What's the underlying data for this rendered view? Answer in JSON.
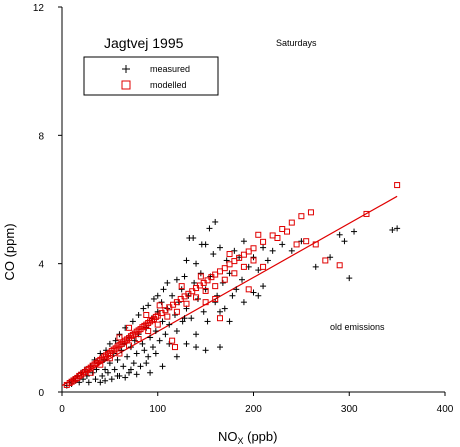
{
  "chart_data": {
    "type": "scatter",
    "title": "Jagtvej 1995",
    "subtitle": "Saturdays",
    "annotation": "old emissions",
    "xlabel": "NO",
    "xlabel_sub": "X",
    "xlabel_unit": " (ppb)",
    "ylabel": "CO (ppm)",
    "xlim": [
      0,
      400
    ],
    "ylim": [
      0,
      12
    ],
    "xticks": [
      0,
      100,
      200,
      300,
      400
    ],
    "yticks": [
      0,
      4,
      8,
      12
    ],
    "legend_placement": "top-left",
    "series": [
      {
        "name": "measured",
        "marker": "plus",
        "color": "#000000",
        "points": [
          [
            5,
            0.2
          ],
          [
            8,
            0.3
          ],
          [
            10,
            0.25
          ],
          [
            12,
            0.4
          ],
          [
            14,
            0.35
          ],
          [
            16,
            0.5
          ],
          [
            18,
            0.3
          ],
          [
            20,
            0.6
          ],
          [
            22,
            0.4
          ],
          [
            24,
            0.7
          ],
          [
            26,
            0.5
          ],
          [
            28,
            0.3
          ],
          [
            30,
            0.8
          ],
          [
            32,
            0.6
          ],
          [
            34,
            1.0
          ],
          [
            35,
            0.4
          ],
          [
            36,
            0.7
          ],
          [
            38,
            0.9
          ],
          [
            40,
            0.3
          ],
          [
            40,
            1.2
          ],
          [
            42,
            0.5
          ],
          [
            44,
            1.0
          ],
          [
            45,
            0.7
          ],
          [
            46,
            1.3
          ],
          [
            48,
            0.6
          ],
          [
            50,
            0.9
          ],
          [
            50,
            1.5
          ],
          [
            52,
            0.4
          ],
          [
            54,
            1.2
          ],
          [
            55,
            0.7
          ],
          [
            56,
            1.6
          ],
          [
            58,
            1.0
          ],
          [
            60,
            0.5
          ],
          [
            60,
            1.8
          ],
          [
            62,
            1.3
          ],
          [
            64,
            0.8
          ],
          [
            65,
            1.5
          ],
          [
            66,
            2.0
          ],
          [
            68,
            1.1
          ],
          [
            70,
            0.6
          ],
          [
            70,
            1.7
          ],
          [
            72,
            1.4
          ],
          [
            74,
            2.2
          ],
          [
            75,
            0.9
          ],
          [
            76,
            1.6
          ],
          [
            78,
            1.2
          ],
          [
            80,
            2.4
          ],
          [
            80,
            1.8
          ],
          [
            82,
            0.8
          ],
          [
            84,
            1.5
          ],
          [
            85,
            2.6
          ],
          [
            86,
            1.3
          ],
          [
            88,
            2.0
          ],
          [
            90,
            1.1
          ],
          [
            90,
            2.7
          ],
          [
            92,
            1.7
          ],
          [
            94,
            2.3
          ],
          [
            95,
            1.4
          ],
          [
            96,
            2.9
          ],
          [
            98,
            1.9
          ],
          [
            100,
            2.5
          ],
          [
            100,
            3.0
          ],
          [
            102,
            1.6
          ],
          [
            104,
            2.8
          ],
          [
            105,
            2.2
          ],
          [
            106,
            3.2
          ],
          [
            108,
            1.8
          ],
          [
            110,
            2.6
          ],
          [
            110,
            3.4
          ],
          [
            112,
            2.1
          ],
          [
            115,
            3.0
          ],
          [
            118,
            2.4
          ],
          [
            120,
            3.5
          ],
          [
            120,
            1.9
          ],
          [
            122,
            2.8
          ],
          [
            125,
            3.2
          ],
          [
            126,
            2.2
          ],
          [
            128,
            3.6
          ],
          [
            130,
            2.6
          ],
          [
            130,
            4.1
          ],
          [
            132,
            3.0
          ],
          [
            135,
            2.3
          ],
          [
            138,
            3.4
          ],
          [
            140,
            4.0
          ],
          [
            140,
            1.8
          ],
          [
            142,
            2.9
          ],
          [
            145,
            3.7
          ],
          [
            148,
            2.5
          ],
          [
            150,
            3.2
          ],
          [
            150,
            4.6
          ],
          [
            152,
            2.2
          ],
          [
            155,
            3.6
          ],
          [
            158,
            4.3
          ],
          [
            160,
            5.3
          ],
          [
            160,
            2.8
          ],
          [
            162,
            3.0
          ],
          [
            165,
            4.5
          ],
          [
            168,
            3.4
          ],
          [
            170,
            2.6
          ],
          [
            172,
            4.1
          ],
          [
            175,
            3.7
          ],
          [
            178,
            3.0
          ],
          [
            180,
            4.4
          ],
          [
            182,
            3.2
          ],
          [
            185,
            4.2
          ],
          [
            188,
            3.5
          ],
          [
            190,
            4.7
          ],
          [
            195,
            3.9
          ],
          [
            200,
            4.2
          ],
          [
            205,
            3.8
          ],
          [
            210,
            4.5
          ],
          [
            215,
            4.1
          ],
          [
            220,
            4.4
          ],
          [
            230,
            4.6
          ],
          [
            240,
            4.4
          ],
          [
            250,
            4.7
          ],
          [
            133,
            4.8
          ],
          [
            137,
            4.8
          ],
          [
            146,
            4.6
          ],
          [
            154,
            5.1
          ],
          [
            200,
            3.1
          ],
          [
            205,
            3.0
          ],
          [
            165,
            2.5
          ],
          [
            128,
            2.3
          ],
          [
            112,
            1.5
          ],
          [
            98,
            1.2
          ],
          [
            88,
            0.9
          ],
          [
            72,
            0.7
          ],
          [
            105,
            0.8
          ],
          [
            140,
            1.4
          ],
          [
            150,
            1.3
          ],
          [
            165,
            1.4
          ],
          [
            175,
            2.2
          ],
          [
            92,
            0.6
          ],
          [
            58,
            0.5
          ],
          [
            45,
            0.35
          ],
          [
            66,
            0.45
          ],
          [
            78,
            0.55
          ],
          [
            130,
            1.5
          ],
          [
            120,
            1.1
          ],
          [
            300,
            3.55
          ],
          [
            345,
            5.05
          ],
          [
            350,
            5.1
          ],
          [
            265,
            3.9
          ],
          [
            280,
            4.2
          ],
          [
            290,
            4.9
          ],
          [
            295,
            4.7
          ],
          [
            305,
            5.0
          ],
          [
            190,
            2.8
          ],
          [
            210,
            3.3
          ]
        ]
      },
      {
        "name": "modelled",
        "marker": "square",
        "color": "#e00000",
        "points": [
          [
            5,
            0.22
          ],
          [
            8,
            0.28
          ],
          [
            10,
            0.32
          ],
          [
            12,
            0.36
          ],
          [
            14,
            0.4
          ],
          [
            16,
            0.44
          ],
          [
            18,
            0.5
          ],
          [
            20,
            0.54
          ],
          [
            22,
            0.58
          ],
          [
            24,
            0.62
          ],
          [
            26,
            0.68
          ],
          [
            28,
            0.72
          ],
          [
            30,
            0.76
          ],
          [
            32,
            0.82
          ],
          [
            34,
            0.86
          ],
          [
            36,
            0.9
          ],
          [
            38,
            0.96
          ],
          [
            40,
            1.0
          ],
          [
            42,
            1.04
          ],
          [
            44,
            1.1
          ],
          [
            46,
            1.14
          ],
          [
            48,
            1.18
          ],
          [
            50,
            1.22
          ],
          [
            52,
            1.28
          ],
          [
            54,
            1.32
          ],
          [
            56,
            1.36
          ],
          [
            58,
            1.42
          ],
          [
            60,
            1.46
          ],
          [
            62,
            1.5
          ],
          [
            64,
            1.55
          ],
          [
            66,
            1.6
          ],
          [
            68,
            1.64
          ],
          [
            70,
            1.68
          ],
          [
            72,
            1.74
          ],
          [
            74,
            1.78
          ],
          [
            76,
            1.82
          ],
          [
            78,
            1.88
          ],
          [
            80,
            1.92
          ],
          [
            82,
            1.96
          ],
          [
            84,
            2.02
          ],
          [
            86,
            2.06
          ],
          [
            88,
            2.1
          ],
          [
            90,
            2.15
          ],
          [
            92,
            2.2
          ],
          [
            94,
            2.24
          ],
          [
            96,
            2.28
          ],
          [
            98,
            2.34
          ],
          [
            100,
            2.38
          ],
          [
            104,
            2.46
          ],
          [
            108,
            2.55
          ],
          [
            112,
            2.64
          ],
          [
            116,
            2.72
          ],
          [
            120,
            2.8
          ],
          [
            124,
            2.9
          ],
          [
            128,
            2.98
          ],
          [
            132,
            3.06
          ],
          [
            136,
            3.14
          ],
          [
            140,
            3.24
          ],
          [
            144,
            3.32
          ],
          [
            148,
            3.4
          ],
          [
            152,
            3.48
          ],
          [
            156,
            3.58
          ],
          [
            160,
            3.66
          ],
          [
            165,
            3.76
          ],
          [
            170,
            3.86
          ],
          [
            175,
            3.98
          ],
          [
            180,
            4.08
          ],
          [
            185,
            4.18
          ],
          [
            190,
            4.28
          ],
          [
            195,
            4.38
          ],
          [
            200,
            4.48
          ],
          [
            210,
            4.68
          ],
          [
            220,
            4.88
          ],
          [
            230,
            5.08
          ],
          [
            240,
            5.28
          ],
          [
            250,
            5.48
          ],
          [
            260,
            5.6
          ],
          [
            318,
            5.55
          ],
          [
            350,
            6.45
          ],
          [
            30,
            0.6
          ],
          [
            40,
            0.85
          ],
          [
            50,
            1.05
          ],
          [
            60,
            1.2
          ],
          [
            70,
            1.45
          ],
          [
            80,
            1.65
          ],
          [
            90,
            1.9
          ],
          [
            100,
            2.1
          ],
          [
            110,
            2.35
          ],
          [
            120,
            2.5
          ],
          [
            130,
            2.75
          ],
          [
            140,
            2.95
          ],
          [
            150,
            3.15
          ],
          [
            160,
            3.3
          ],
          [
            170,
            3.5
          ],
          [
            180,
            3.7
          ],
          [
            190,
            3.9
          ],
          [
            200,
            4.1
          ],
          [
            150,
            2.8
          ],
          [
            160,
            2.9
          ],
          [
            115,
            1.6
          ],
          [
            118,
            1.4
          ],
          [
            165,
            2.3
          ],
          [
            195,
            3.2
          ],
          [
            210,
            3.9
          ],
          [
            245,
            4.6
          ],
          [
            255,
            4.7
          ],
          [
            265,
            4.6
          ],
          [
            70,
            2.0
          ],
          [
            88,
            2.4
          ],
          [
            102,
            2.7
          ],
          [
            125,
            3.3
          ],
          [
            145,
            3.6
          ],
          [
            175,
            4.3
          ],
          [
            205,
            4.9
          ],
          [
            225,
            4.8
          ],
          [
            235,
            5.0
          ],
          [
            275,
            4.1
          ],
          [
            290,
            3.95
          ],
          [
            60,
            1.7
          ]
        ]
      }
    ],
    "fit_line": {
      "x": [
        0,
        350
      ],
      "y": [
        0.2,
        6.1
      ]
    }
  }
}
